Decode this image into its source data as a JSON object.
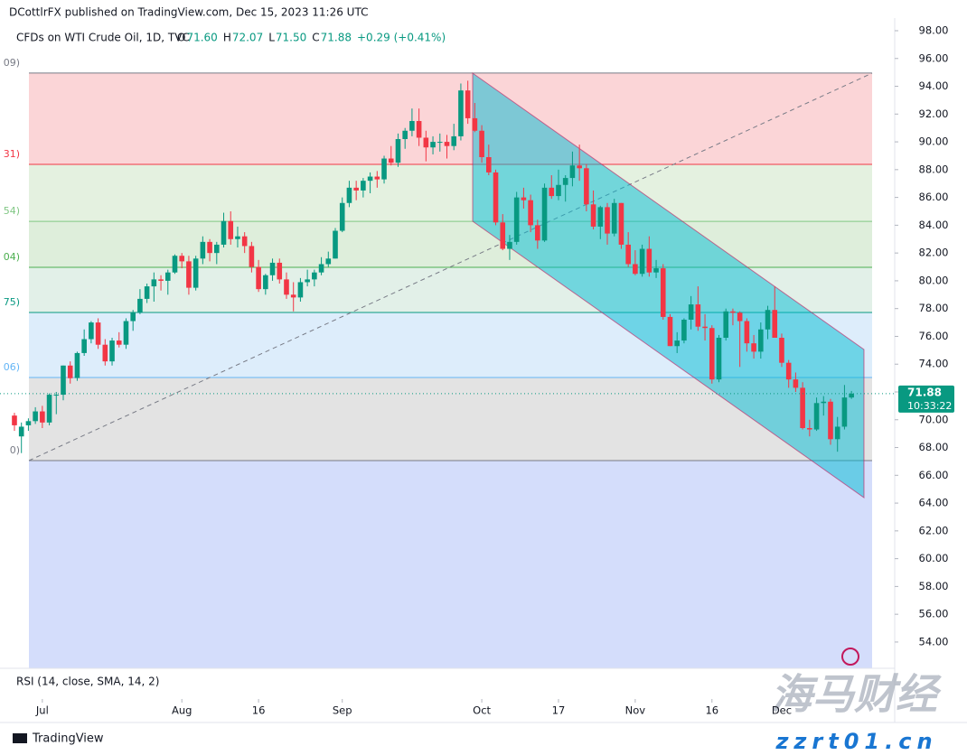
{
  "header": "DCottlrFX published on TradingView.com, Dec 15, 2023 11:26 UTC",
  "legend": {
    "symbol": "CFDs on WTI Crude Oil, 1D, TVC",
    "fields": [
      {
        "label": "O",
        "value": "71.60"
      },
      {
        "label": "H",
        "value": "72.07"
      },
      {
        "label": "L",
        "value": "71.50"
      },
      {
        "label": "C",
        "value": "71.88"
      },
      {
        "label": "",
        "value": "+0.29 (+0.41%)"
      }
    ]
  },
  "price_tag": {
    "price": "71.88",
    "countdown": "10:33:22"
  },
  "rsi_label": "RSI (14, close, SMA, 14, 2)",
  "footer": "TradingView",
  "watermark": {
    "title": "海马财经",
    "site": "zzrt01.cn"
  },
  "chart_data": {
    "type": "candlestick",
    "up_color": "#089981",
    "down_color": "#f23645",
    "xlim": [
      -2.07,
      126.2
    ],
    "ylim": [
      52.11,
      98.91
    ],
    "xticks": [
      {
        "value": 4,
        "label": "Jul"
      },
      {
        "value": 24,
        "label": "Aug"
      },
      {
        "value": 35,
        "label": "16"
      },
      {
        "value": 47,
        "label": "Sep"
      },
      {
        "value": 67,
        "label": "Oct"
      },
      {
        "value": 78,
        "label": "17"
      },
      {
        "value": 89,
        "label": "Nov"
      },
      {
        "value": 100,
        "label": "16"
      },
      {
        "value": 110,
        "label": "Dec"
      }
    ],
    "yticks": [
      {
        "value": 54,
        "label": "54.00"
      },
      {
        "value": 56,
        "label": "56.00"
      },
      {
        "value": 58,
        "label": "58.00"
      },
      {
        "value": 60,
        "label": "60.00"
      },
      {
        "value": 62,
        "label": "62.00"
      },
      {
        "value": 64,
        "label": "64.00"
      },
      {
        "value": 66,
        "label": "66.00"
      },
      {
        "value": 68,
        "label": "68.00"
      },
      {
        "value": 70,
        "label": "70.00"
      },
      {
        "value": 72,
        "label": "72.00"
      },
      {
        "value": 74,
        "label": "74.00"
      },
      {
        "value": 76,
        "label": "76.00"
      },
      {
        "value": 78,
        "label": "78.00"
      },
      {
        "value": 80,
        "label": "80.00"
      },
      {
        "value": 82,
        "label": "82.00"
      },
      {
        "value": 84,
        "label": "84.00"
      },
      {
        "value": 86,
        "label": "86.00"
      },
      {
        "value": 88,
        "label": "88.00"
      },
      {
        "value": 90,
        "label": "90.00"
      },
      {
        "value": 92,
        "label": "92.00"
      },
      {
        "value": 94,
        "label": "94.00"
      },
      {
        "value": 96,
        "label": "96.00"
      },
      {
        "value": 98,
        "label": "98.00"
      }
    ],
    "last_price": 71.88,
    "fib_levels": [
      {
        "value": 94.95,
        "label": "09)",
        "color": "#787b86",
        "fill": "#fbd5d7"
      },
      {
        "value": 88.38,
        "label": "31)",
        "color": "#f23645",
        "fill": "#e4f1e0"
      },
      {
        "value": 84.28,
        "label": "54)",
        "color": "#81c784",
        "fill": "#deeedb"
      },
      {
        "value": 80.97,
        "label": "04)",
        "color": "#4caf50",
        "fill": "#e2f0e8"
      },
      {
        "value": 77.72,
        "label": "75)",
        "color": "#089981",
        "fill": "#ddedfb"
      },
      {
        "value": 73.04,
        "label": "06)",
        "color": "#64b5f6",
        "fill": "#e3e3e3"
      },
      {
        "value": 67.06,
        "label": "0)",
        "color": "#787b86",
        "fill": "#d4ddfb"
      }
    ],
    "open": [
      70.3,
      68.8,
      69.6,
      69.9,
      70.6,
      69.8,
      71.8,
      71.8,
      73.9,
      73.0,
      74.8,
      75.8,
      77.0,
      75.4,
      74.2,
      75.7,
      75.4,
      77.1,
      77.7,
      78.7,
      79.6,
      80.1,
      80.0,
      80.6,
      81.8,
      81.4,
      79.5,
      81.6,
      82.8,
      82.0,
      82.6,
      84.3,
      83.0,
      83.2,
      82.5,
      81.0,
      79.4,
      80.4,
      81.3,
      80.1,
      79.0,
      78.8,
      79.9,
      80.1,
      80.6,
      81.2,
      81.6,
      83.6,
      85.6,
      86.7,
      86.5,
      87.2,
      87.5,
      87.3,
      88.8,
      88.5,
      90.2,
      90.8,
      91.5,
      90.3,
      89.6,
      90.0,
      90.0,
      89.7,
      90.4,
      93.7,
      91.7,
      90.8,
      88.9,
      87.8,
      84.2,
      82.3,
      82.8,
      86.0,
      85.8,
      84.0,
      82.9,
      86.7,
      86.1,
      86.9,
      87.4,
      88.3,
      88.1,
      85.5,
      83.9,
      85.3,
      83.4,
      85.6,
      82.6,
      81.2,
      80.5,
      82.3,
      80.6,
      80.9,
      77.4,
      75.3,
      75.7,
      77.2,
      78.3,
      76.7,
      76.6,
      72.9,
      75.9,
      77.8,
      77.7,
      77.1,
      75.5,
      74.9,
      76.5,
      77.9,
      75.9,
      74.1,
      72.9,
      72.3,
      69.4,
      69.3,
      71.2,
      71.3,
      68.6,
      69.5,
      71.6
    ],
    "high": [
      70.5,
      69.8,
      70.1,
      70.9,
      71.0,
      71.9,
      72.0,
      73.9,
      74.2,
      74.9,
      76.5,
      77.1,
      77.3,
      75.8,
      75.9,
      76.3,
      77.3,
      77.9,
      79.4,
      79.8,
      80.6,
      80.4,
      80.8,
      81.9,
      82.0,
      81.8,
      81.8,
      83.2,
      83.0,
      82.8,
      84.9,
      85.0,
      83.9,
      83.5,
      82.8,
      81.5,
      80.5,
      81.6,
      81.6,
      80.6,
      79.9,
      80.2,
      80.8,
      80.8,
      81.7,
      82.1,
      83.8,
      86.0,
      87.2,
      87.2,
      87.4,
      87.8,
      87.9,
      89.0,
      89.7,
      90.6,
      91.0,
      92.4,
      92.4,
      90.8,
      90.4,
      90.6,
      90.5,
      91.3,
      94.2,
      94.4,
      92.8,
      91.2,
      89.8,
      88.0,
      84.8,
      83.3,
      86.4,
      86.7,
      86.2,
      84.4,
      87.0,
      87.6,
      88.0,
      87.6,
      89.3,
      89.8,
      88.4,
      86.5,
      85.4,
      85.6,
      85.9,
      85.6,
      83.5,
      82.2,
      82.6,
      83.2,
      81.5,
      81.2,
      77.6,
      76.3,
      77.3,
      78.9,
      79.6,
      77.6,
      76.8,
      76.1,
      78.0,
      78.0,
      77.8,
      77.3,
      76.1,
      77.0,
      78.2,
      79.6,
      76.2,
      74.3,
      73.4,
      72.7,
      70.0,
      71.6,
      71.7,
      71.5,
      70.2,
      72.5,
      72.07
    ],
    "low": [
      69.2,
      67.6,
      69.2,
      69.7,
      69.4,
      69.6,
      70.4,
      71.4,
      72.6,
      72.8,
      74.6,
      75.5,
      75.1,
      73.9,
      73.9,
      75.2,
      75.1,
      76.4,
      77.6,
      78.4,
      78.5,
      79.3,
      79.0,
      80.5,
      80.9,
      79.0,
      79.3,
      81.2,
      81.4,
      81.2,
      82.4,
      82.6,
      82.4,
      82.0,
      80.6,
      79.2,
      79.0,
      80.0,
      79.8,
      78.7,
      77.8,
      78.5,
      79.6,
      79.6,
      80.4,
      81.0,
      81.6,
      83.5,
      85.3,
      85.8,
      86.0,
      86.3,
      86.7,
      87.0,
      88.3,
      88.2,
      89.5,
      90.4,
      89.7,
      88.6,
      89.1,
      89.3,
      88.8,
      89.4,
      90.1,
      91.3,
      90.7,
      88.5,
      87.6,
      84.0,
      82.2,
      81.5,
      82.6,
      85.2,
      83.5,
      82.3,
      82.8,
      85.9,
      85.8,
      85.7,
      86.8,
      87.2,
      85.0,
      83.7,
      83.0,
      82.6,
      83.2,
      82.3,
      81.0,
      80.4,
      80.3,
      80.3,
      80.2,
      77.2,
      75.3,
      74.8,
      75.5,
      76.5,
      76.4,
      75.7,
      72.6,
      72.7,
      75.7,
      76.8,
      73.8,
      74.9,
      74.4,
      74.4,
      75.8,
      75.9,
      73.8,
      72.3,
      72.0,
      69.3,
      68.8,
      69.2,
      70.3,
      68.2,
      67.7,
      69.3,
      71.5
    ],
    "close": [
      69.6,
      69.5,
      69.9,
      70.6,
      69.8,
      71.8,
      71.8,
      73.9,
      72.99,
      74.8,
      75.8,
      77.0,
      75.4,
      74.2,
      75.7,
      75.4,
      77.1,
      77.7,
      78.7,
      79.6,
      80.1,
      80.0,
      80.6,
      81.8,
      81.4,
      79.5,
      81.6,
      82.8,
      82.0,
      82.6,
      84.3,
      83.0,
      83.2,
      82.5,
      81.0,
      79.4,
      80.4,
      81.3,
      80.1,
      79.0,
      78.8,
      79.9,
      80.1,
      80.6,
      81.2,
      81.6,
      83.6,
      85.6,
      86.7,
      86.5,
      87.2,
      87.5,
      87.3,
      88.8,
      88.5,
      90.2,
      90.8,
      91.5,
      90.3,
      89.6,
      90.0,
      90.0,
      89.7,
      90.4,
      93.7,
      91.7,
      90.8,
      88.9,
      87.8,
      84.2,
      82.3,
      82.8,
      86.0,
      85.8,
      84.0,
      82.9,
      86.7,
      86.1,
      86.9,
      87.4,
      88.3,
      88.1,
      85.5,
      83.9,
      85.3,
      83.4,
      85.6,
      82.6,
      81.2,
      80.5,
      82.3,
      80.6,
      80.9,
      77.4,
      75.3,
      75.7,
      77.2,
      78.3,
      76.7,
      76.6,
      72.9,
      75.9,
      77.8,
      77.7,
      77.1,
      75.5,
      74.9,
      76.5,
      77.9,
      75.9,
      74.1,
      72.9,
      72.3,
      69.4,
      69.3,
      71.2,
      71.3,
      68.6,
      69.5,
      71.6,
      71.88
    ]
  }
}
